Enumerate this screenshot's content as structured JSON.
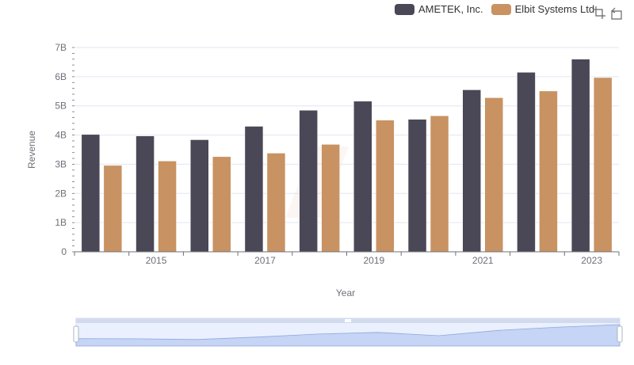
{
  "legend": [
    {
      "label": "AMETEK, Inc.",
      "color": "#4a4856"
    },
    {
      "label": "Elbit Systems Ltd.",
      "color": "#c89262"
    }
  ],
  "toolbox": {
    "icons": [
      "zoom-icon",
      "restore-icon"
    ]
  },
  "chart_data": {
    "type": "bar",
    "categories": [
      "2014",
      "2015",
      "2016",
      "2017",
      "2018",
      "2019",
      "2020",
      "2021",
      "2022",
      "2023"
    ],
    "x_tick_labels": [
      "2015",
      "2017",
      "2019",
      "2021",
      "2023"
    ],
    "series": [
      {
        "name": "AMETEK, Inc.",
        "color": "#4a4856",
        "values": [
          4.02,
          3.97,
          3.84,
          4.3,
          4.85,
          5.16,
          4.54,
          5.55,
          6.15,
          6.6
        ]
      },
      {
        "name": "Elbit Systems Ltd.",
        "color": "#c89262",
        "values": [
          2.96,
          3.11,
          3.26,
          3.38,
          3.68,
          4.51,
          4.66,
          5.28,
          5.51,
          5.97
        ]
      }
    ],
    "xlabel": "Year",
    "ylabel": "Revenue",
    "ylim": [
      0,
      7
    ],
    "y_ticks": [
      "0",
      "1B",
      "2B",
      "3B",
      "4B",
      "5B",
      "6B",
      "7B"
    ],
    "grid": true,
    "legend_position": "top-right"
  }
}
